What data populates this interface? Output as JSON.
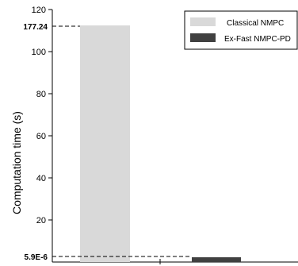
{
  "chart_data": {
    "type": "bar",
    "title": "",
    "xlabel": "",
    "ylabel": "Computation time (s)",
    "ylim": [
      0,
      120
    ],
    "yticks": [
      20,
      40,
      60,
      80,
      100,
      120
    ],
    "grid": false,
    "legend_position": "top-right",
    "series": [
      {
        "name": "Classical NMPC",
        "value": 177.24,
        "color": "#d9d9d9"
      },
      {
        "name": "Ex-Fast NMPC-PD",
        "value": 5.9e-06,
        "color": "#404040"
      }
    ],
    "annotations": [
      {
        "text": "177.24"
      },
      {
        "text": "5.9E-6"
      }
    ]
  }
}
